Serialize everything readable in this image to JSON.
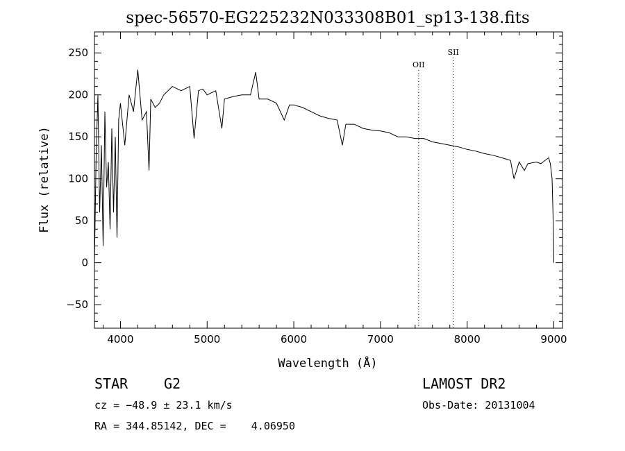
{
  "chart_data": {
    "type": "line",
    "title": "spec-56570-EG225232N033308B01_sp13-138.fits",
    "xlabel": "Wavelength (Å)",
    "ylabel": "Flux (relative)",
    "xlim": [
      3700,
      9100
    ],
    "ylim": [
      -78,
      275
    ],
    "xticks": [
      4000,
      5000,
      6000,
      7000,
      8000,
      9000
    ],
    "yticks": [
      -50,
      0,
      50,
      100,
      150,
      200,
      250
    ],
    "grid": false,
    "line_color": "#000000",
    "series": [
      {
        "x": [
          3700,
          3720,
          3740,
          3760,
          3780,
          3800,
          3820,
          3840,
          3860,
          3880,
          3900,
          3920,
          3940,
          3960,
          3980,
          4000,
          4050,
          4100,
          4150,
          4200,
          4250,
          4300,
          4330,
          4350,
          4400,
          4450,
          4500,
          4550,
          4600,
          4700,
          4800,
          4850,
          4900,
          4950,
          5000,
          5100,
          5170,
          5200,
          5300,
          5400,
          5500,
          5560,
          5600,
          5700,
          5800,
          5890,
          5950,
          6000,
          6100,
          6200,
          6300,
          6400,
          6500,
          6560,
          6600,
          6700,
          6800,
          6900,
          7000,
          7100,
          7200,
          7300,
          7400,
          7500,
          7600,
          7700,
          7800,
          7900,
          8000,
          8100,
          8200,
          8300,
          8400,
          8500,
          8540,
          8600,
          8660,
          8700,
          8800,
          8850,
          8900,
          8940,
          8960,
          8980,
          8990,
          9000
        ],
        "y": [
          0,
          130,
          200,
          60,
          140,
          20,
          180,
          90,
          120,
          40,
          160,
          60,
          150,
          30,
          170,
          190,
          140,
          200,
          180,
          230,
          170,
          180,
          110,
          195,
          185,
          190,
          200,
          205,
          210,
          205,
          210,
          148,
          205,
          207,
          200,
          205,
          160,
          195,
          198,
          200,
          200,
          227,
          195,
          195,
          190,
          170,
          188,
          188,
          185,
          180,
          175,
          172,
          170,
          140,
          165,
          165,
          160,
          158,
          157,
          155,
          150,
          150,
          148,
          148,
          144,
          142,
          140,
          138,
          135,
          133,
          130,
          128,
          125,
          122,
          100,
          120,
          110,
          118,
          120,
          118,
          122,
          125,
          118,
          100,
          60,
          0
        ]
      }
    ],
    "annotations": [
      {
        "label": "OII",
        "x": 7440
      },
      {
        "label": "SII",
        "x": 7840
      }
    ]
  },
  "info": {
    "object_class": "STAR",
    "subclass": "G2",
    "cz": "cz = −48.9 ± 23.1 km/s",
    "coords": "RA = 344.85142, DEC =    4.06950",
    "survey": "LAMOST DR2",
    "obs_date": "Obs-Date: 20131004"
  }
}
